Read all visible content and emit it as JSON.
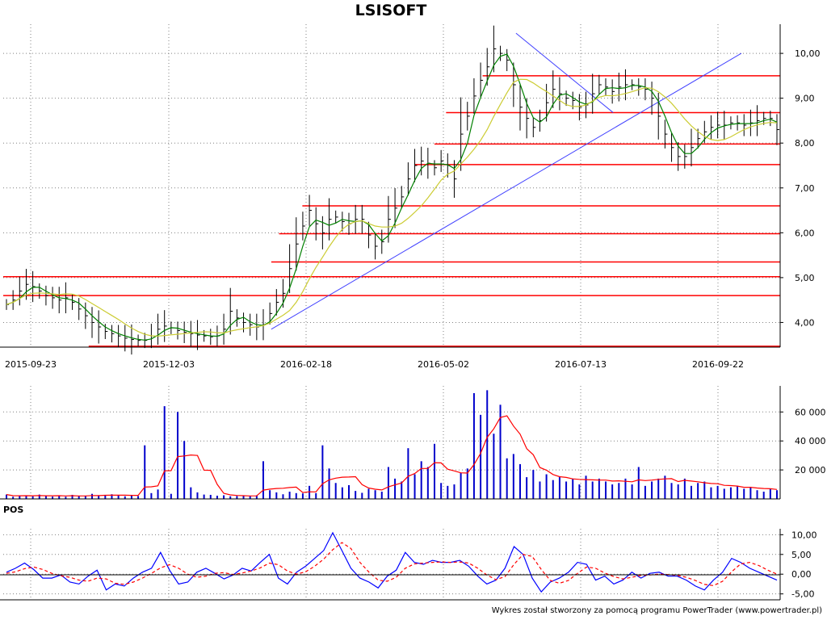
{
  "title": "LSISOFT",
  "footer_credit": "Wykres został stworzony za pomocą programu PowerTrader (www.powertrader.pl)",
  "colors": {
    "price_bar": "#000000",
    "ma_short": "#008000",
    "ma_long": "#cccc33",
    "levels": "#ff0000",
    "trendline": "#4040ff",
    "volume_bar": "#0000cc",
    "volume_ma": "#ff0000",
    "pos_line": "#0000ff",
    "pos_signal": "#ff0000",
    "grid": "#808080"
  },
  "chart_data": [
    {
      "type": "line",
      "name": "price",
      "x_tick_labels": [
        "2015-09-23",
        "2015-12-03",
        "2016-02-18",
        "2016-05-02",
        "2016-07-13",
        "2016-09-22"
      ],
      "y_tick_labels": [
        "4,00",
        "5,00",
        "6,00",
        "7,00",
        "8,00",
        "9,00",
        "10,00"
      ],
      "ylim": [
        3.45,
        10.65
      ],
      "grid": true,
      "horizontal_levels": [
        3.47,
        4.6,
        5.02,
        5.35,
        5.98,
        6.6,
        7.52,
        7.98,
        8.68,
        9.5
      ],
      "trendlines": [
        {
          "from": [
            0.345,
            3.85
          ],
          "to": [
            0.95,
            10.0
          ]
        },
        {
          "from": [
            0.66,
            10.45
          ],
          "to": [
            0.785,
            8.68
          ]
        }
      ],
      "series": [
        {
          "name": "",
          "values": [
            4.4,
            4.5,
            4.7,
            4.85,
            4.8,
            4.7,
            4.6,
            4.55,
            4.5,
            4.55,
            4.45,
            4.3,
            4.15,
            4.0,
            3.9,
            3.8,
            3.75,
            3.7,
            3.65,
            3.62,
            3.6,
            3.6,
            3.7,
            3.85,
            3.92,
            3.88,
            3.82,
            3.78,
            3.75,
            3.72,
            3.7,
            3.68,
            3.7,
            3.85,
            4.25,
            4.1,
            4.0,
            3.95,
            3.9,
            3.95,
            4.2,
            4.45,
            4.65,
            5.2,
            5.75,
            6.15,
            6.5,
            6.2,
            6.0,
            6.3,
            6.35,
            6.25,
            6.2,
            6.3,
            6.3,
            5.95,
            5.7,
            5.8,
            6.3,
            6.55,
            6.8,
            7.2,
            7.5,
            7.6,
            7.55,
            7.45,
            7.6,
            7.5,
            7.2,
            8.2,
            8.6,
            9.05,
            9.4,
            9.7,
            10.1,
            10.0,
            9.85,
            9.3,
            8.8,
            8.55,
            8.35,
            8.5,
            8.9,
            9.2,
            9.1,
            9.0,
            8.95,
            8.8,
            8.85,
            9.1,
            9.3,
            9.25,
            9.15,
            9.25,
            9.3,
            9.3,
            9.25,
            9.2,
            9.0,
            8.6,
            8.2,
            7.9,
            7.7,
            7.7,
            7.9,
            8.1,
            8.25,
            8.35,
            8.4,
            8.4,
            8.45,
            8.45,
            8.4,
            8.45,
            8.5,
            8.55,
            8.55,
            8.3
          ]
        }
      ]
    },
    {
      "type": "bar",
      "name": "volume",
      "y_tick_labels": [
        "20 000",
        "40 000",
        "60 000"
      ],
      "ylim": [
        0,
        78000
      ],
      "values": [
        3000,
        1500,
        2000,
        2500,
        1800,
        3000,
        2200,
        1600,
        2400,
        1500,
        2800,
        1900,
        2100,
        3500,
        2000,
        2600,
        3200,
        2400,
        1800,
        2800,
        2000,
        37000,
        4000,
        6500,
        64000,
        3500,
        60000,
        40000,
        8000,
        4500,
        3000,
        2800,
        2200,
        2500,
        1800,
        2000,
        2200,
        1800,
        2500,
        26000,
        6000,
        4500,
        3200,
        5000,
        4000,
        3800,
        9000,
        4000,
        37000,
        21000,
        11000,
        8000,
        9500,
        5500,
        4200,
        7000,
        6000,
        5000,
        22000,
        14000,
        12000,
        35000,
        17000,
        26000,
        22000,
        38000,
        11000,
        9000,
        10000,
        18000,
        21000,
        73000,
        58000,
        75000,
        45000,
        65000,
        28000,
        31000,
        24000,
        15000,
        20000,
        12000,
        17000,
        13000,
        15000,
        12000,
        14000,
        10000,
        16000,
        12000,
        14000,
        12000,
        10000,
        11000,
        14000,
        10000,
        22000,
        9000,
        12000,
        14000,
        16000,
        11000,
        10000,
        14000,
        9000,
        11000,
        12000,
        8000,
        9000,
        7000,
        8000,
        9000,
        7000,
        8000,
        6000,
        5000,
        7000,
        6000
      ]
    },
    {
      "type": "line",
      "name": "POS",
      "y_tick_labels": [
        "-5,00",
        "0,00",
        "5,00",
        "10,00"
      ],
      "ylim": [
        -6.5,
        11.5
      ],
      "series": [
        {
          "name": "",
          "values": [
            0.5,
            1.5,
            2.8,
            1.2,
            -1.0,
            -1.0,
            -0.2,
            -2.0,
            -2.5,
            -0.5,
            1.0,
            -4.0,
            -2.5,
            -3.0,
            -1.0,
            0.5,
            1.5,
            5.5,
            1.0,
            -2.5,
            -2.0,
            0.5,
            1.5,
            0.2,
            -1.2,
            -0.2,
            1.5,
            0.8,
            3.0,
            5.0,
            -1.0,
            -2.5,
            0.5,
            2.0,
            4.0,
            6.0,
            10.5,
            6.0,
            1.5,
            -1.0,
            -2.0,
            -3.5,
            -0.5,
            1.0,
            5.5,
            3.0,
            2.5,
            3.5,
            3.0,
            3.0,
            3.5,
            2.0,
            -0.5,
            -2.5,
            -1.5,
            1.5,
            7.0,
            5.0,
            -1.0,
            -4.5,
            -2.0,
            -1.0,
            0.5,
            3.0,
            2.5,
            -1.5,
            -0.5,
            -2.5,
            -1.5,
            0.5,
            -1.0,
            0.2,
            0.5,
            -0.5,
            -0.5,
            -1.5,
            -3.0,
            -4.0,
            -1.5,
            0.5,
            4.0,
            3.0,
            1.5,
            0.5,
            -0.5,
            -1.5
          ]
        },
        {
          "name": "",
          "values": [
            0.2,
            0.6,
            1.4,
            1.8,
            1.2,
            0.2,
            -0.4,
            -0.8,
            -1.5,
            -1.8,
            -1.0,
            -1.2,
            -2.3,
            -2.6,
            -2.0,
            -1.0,
            0.2,
            1.6,
            2.4,
            1.5,
            0.0,
            -0.8,
            -0.5,
            0.2,
            0.4,
            -0.1,
            0.3,
            0.8,
            1.6,
            2.8,
            2.4,
            0.8,
            0.0,
            0.6,
            2.0,
            3.8,
            6.2,
            8.0,
            6.5,
            3.0,
            0.5,
            -1.5,
            -1.8,
            -0.8,
            1.5,
            2.6,
            2.8,
            3.0,
            3.1,
            3.0,
            3.1,
            2.8,
            1.5,
            -0.2,
            -1.4,
            -0.6,
            2.5,
            5.0,
            4.5,
            1.2,
            -1.6,
            -2.3,
            -1.6,
            0.2,
            1.8,
            1.5,
            0.3,
            -0.6,
            -1.2,
            -0.8,
            -0.3,
            -0.2,
            0.0,
            -0.1,
            -0.3,
            -0.8,
            -1.6,
            -2.6,
            -2.9,
            -1.8,
            0.6,
            2.6,
            3.0,
            2.2,
            1.0,
            0.0
          ]
        }
      ]
    }
  ]
}
